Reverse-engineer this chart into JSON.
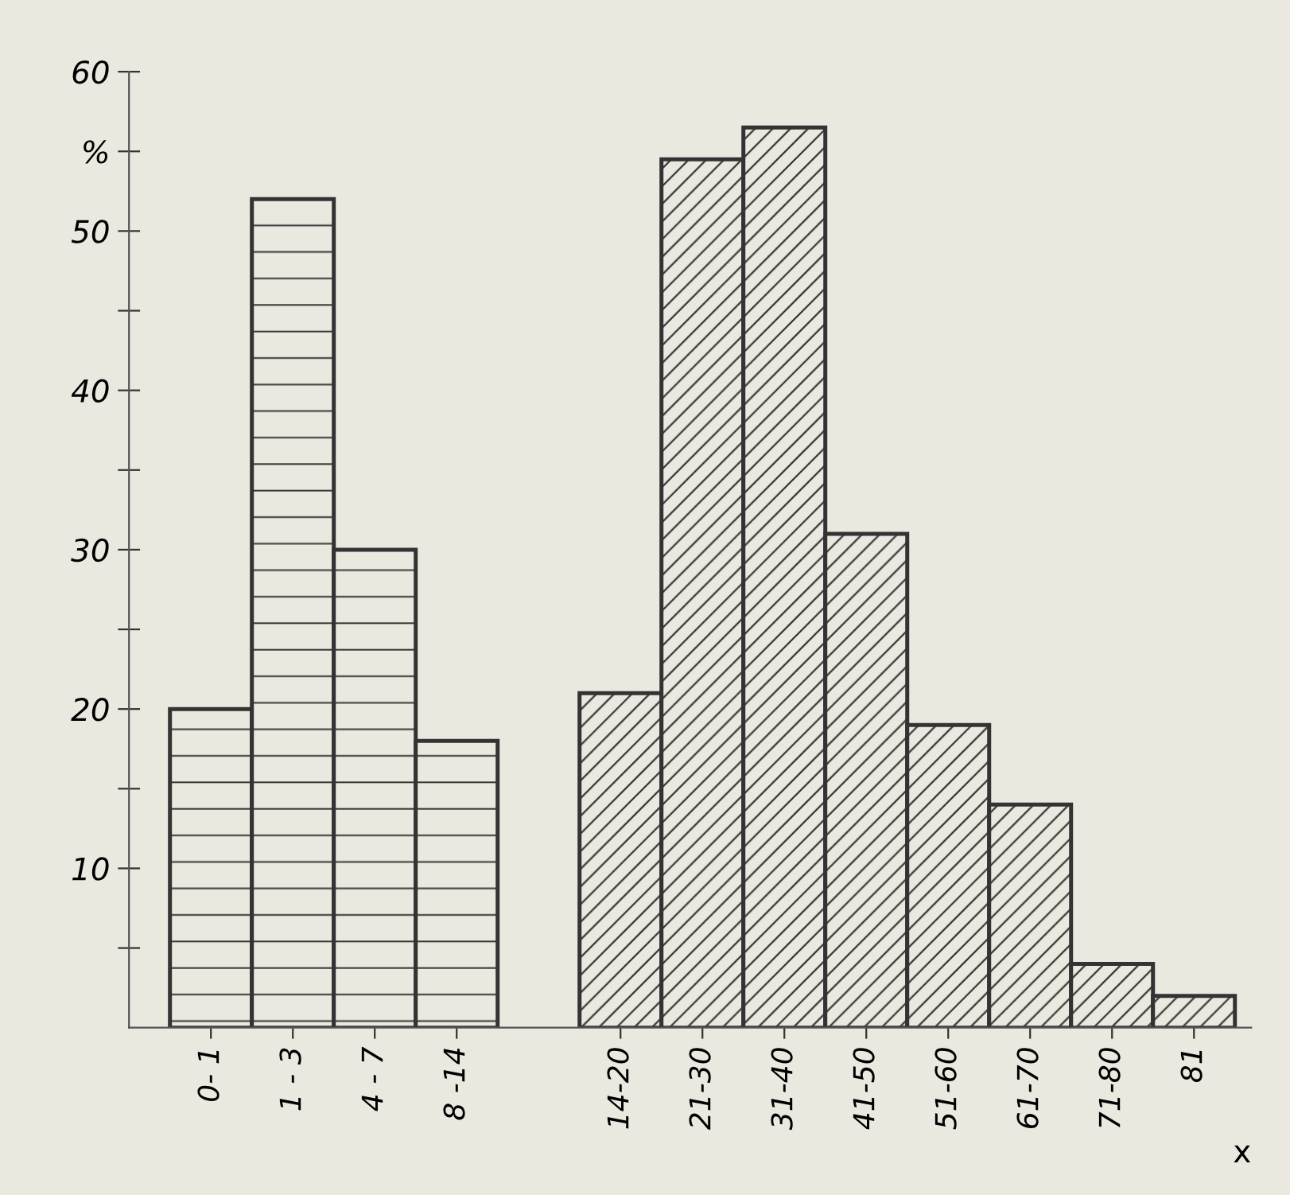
{
  "chart_data": {
    "type": "bar",
    "xlabel": "x",
    "categories": [
      "0- 1",
      "1 - 3",
      "4 - 7",
      "8 -14",
      null,
      "14-20",
      "21-30",
      "31-40",
      "41-50",
      "51-60",
      "61-70",
      "71-80",
      "81"
    ],
    "series": [
      {
        "color": "#333333",
        "values": [
          20,
          52,
          30,
          18,
          null,
          null,
          null,
          null,
          null,
          null,
          null,
          null,
          null
        ]
      },
      {
        "color": "#333333",
        "values": [
          null,
          null,
          null,
          null,
          null,
          21,
          54.5,
          56.5,
          31,
          19,
          14,
          4,
          2
        ]
      }
    ],
    "ylim": [
      0,
      60
    ],
    "yticks": [
      {
        "value": 5,
        "label": null
      },
      10,
      {
        "value": 15,
        "label": null
      },
      20,
      {
        "value": 25,
        "label": null
      },
      30,
      {
        "value": 35,
        "label": null
      },
      40,
      {
        "value": 45,
        "label": null
      },
      50,
      {
        "value": 55,
        "label": "%"
      },
      60
    ],
    "grid": false
  }
}
